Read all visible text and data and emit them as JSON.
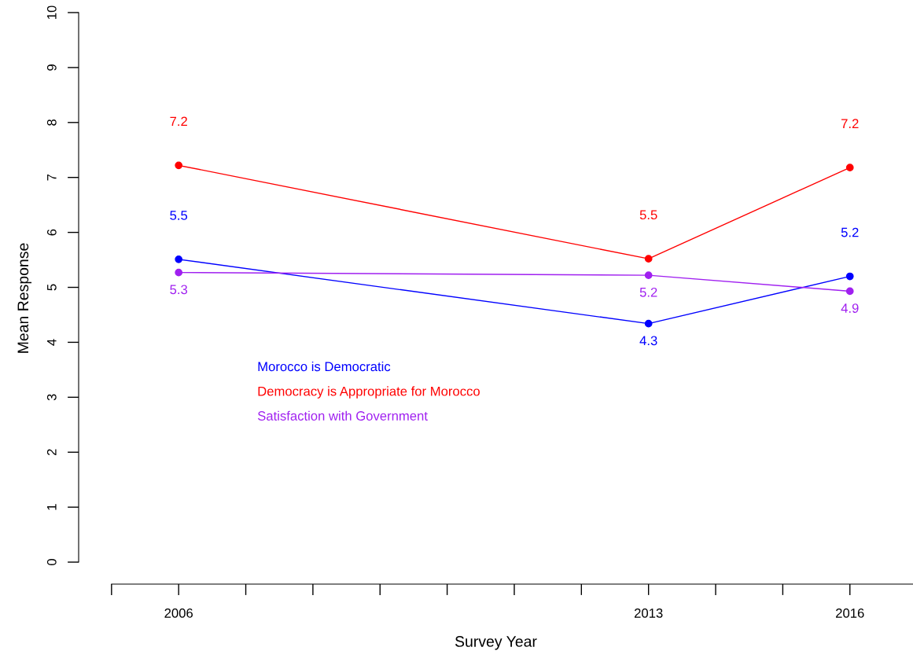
{
  "chart_data": {
    "type": "line",
    "xlabel": "Survey Year",
    "ylabel": "Mean Response",
    "x": [
      2006,
      2013,
      2016
    ],
    "series": [
      {
        "name": "Morocco is Democratic",
        "color": "#0000ff",
        "values": [
          5.51,
          4.34,
          5.2
        ],
        "value_labels": [
          "5.5",
          "4.3",
          "5.2"
        ]
      },
      {
        "name": "Democracy is Appropriate for Morocco",
        "color": "#ff0000",
        "values": [
          7.22,
          5.52,
          7.18
        ],
        "value_labels": [
          "7.2",
          "5.5",
          "7.2"
        ]
      },
      {
        "name": "Satisfaction with Government",
        "color": "#a020f0",
        "values": [
          5.27,
          5.22,
          4.93
        ],
        "value_labels": [
          "5.3",
          "5.2",
          "4.9"
        ]
      }
    ],
    "xlim": [
      2004.51,
      2016.94
    ],
    "xticks": [
      {
        "value": 2005,
        "label": null
      },
      2006,
      {
        "value": 2007,
        "label": null
      },
      {
        "value": 2008,
        "label": null
      },
      {
        "value": 2009,
        "label": null
      },
      {
        "value": 2010,
        "label": null
      },
      {
        "value": 2011,
        "label": null
      },
      {
        "value": 2012,
        "label": null
      },
      2013,
      {
        "value": 2014,
        "label": null
      },
      {
        "value": 2015,
        "label": null
      },
      2016
    ],
    "ylim": [
      -0.4,
      10
    ],
    "yticks": [
      0,
      1,
      2,
      3,
      4,
      5,
      6,
      7,
      8,
      9,
      10
    ],
    "marker": "circle",
    "line_style": "solid",
    "grid": false,
    "legend": "left"
  }
}
